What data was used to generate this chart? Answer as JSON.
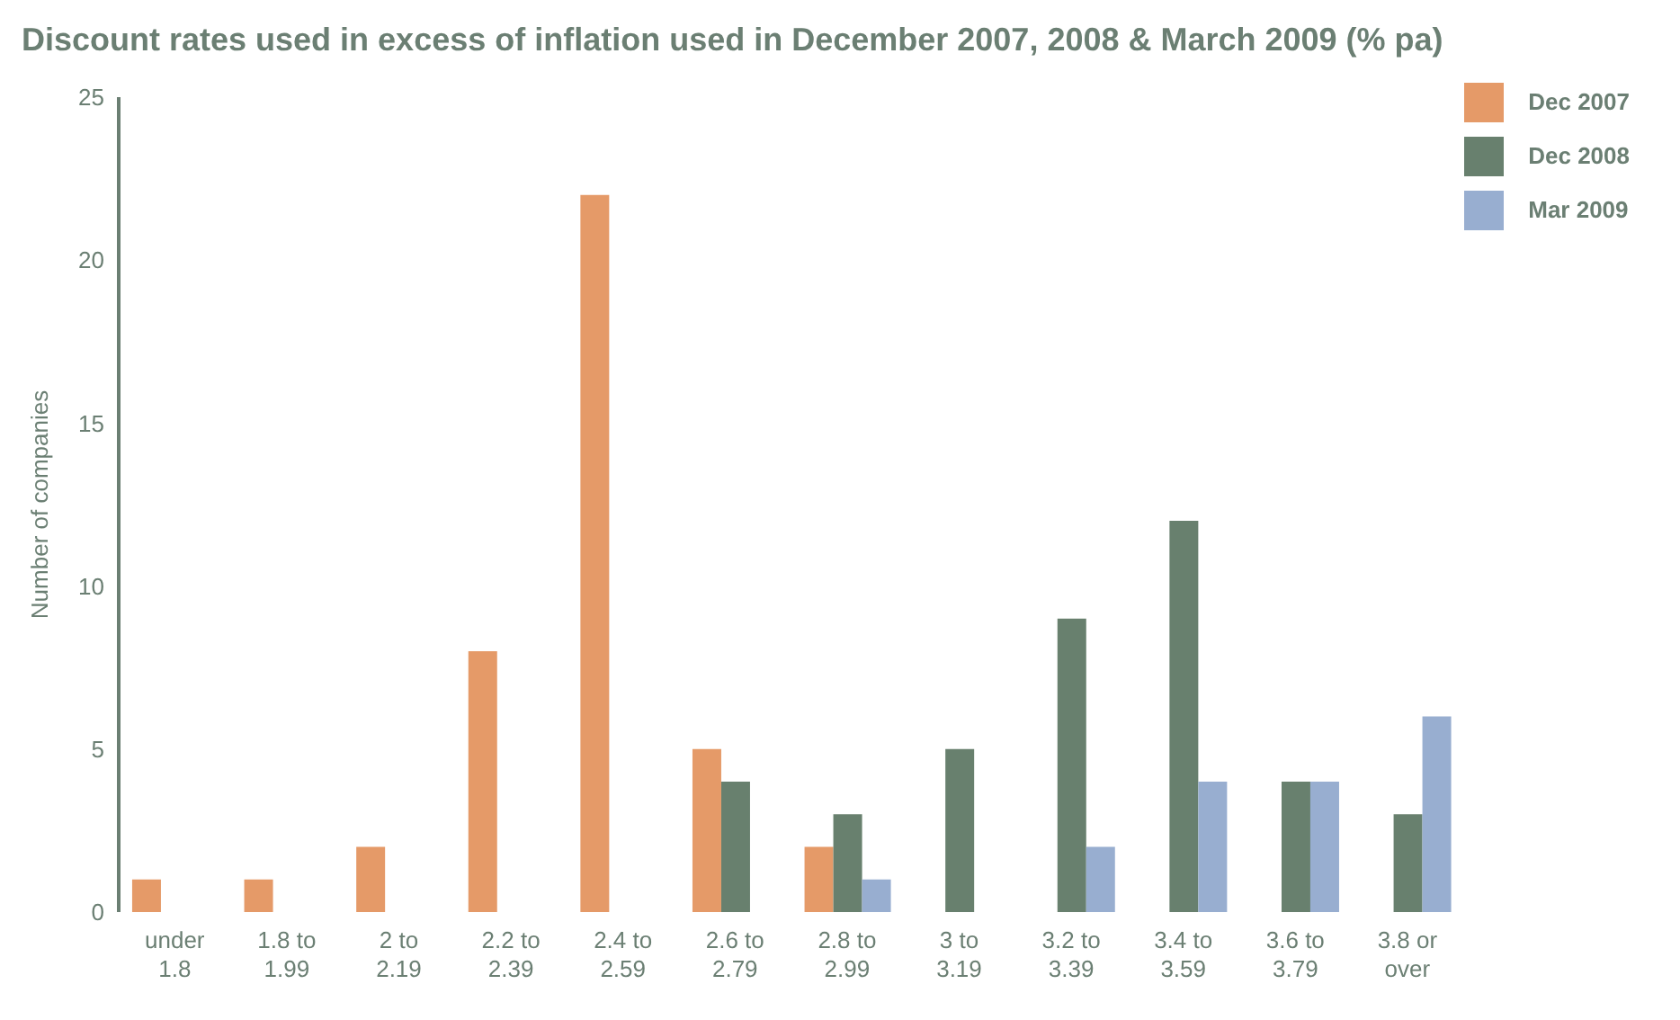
{
  "chart_data": {
    "type": "bar",
    "title": "Discount rates used in excess of inflation used in December 2007, 2008 & March 2009 (% pa)",
    "ylabel": "Number of companies",
    "categories": [
      "under 1.8",
      "1.8 to 1.99",
      "2 to 2.19",
      "2.2 to 2.39",
      "2.4 to 2.59",
      "2.6 to 2.79",
      "2.8 to 2.99",
      "3 to 3.19",
      "3.2 to 3.39",
      "3.4 to 3.59",
      "3.6 to 3.79",
      "3.8 or over"
    ],
    "series": [
      {
        "name": "Dec 2007",
        "color": "#e59a68",
        "values": [
          1,
          1,
          2,
          8,
          22,
          5,
          2,
          null,
          null,
          null,
          null,
          null
        ]
      },
      {
        "name": "Dec 2008",
        "color": "#68806e",
        "values": [
          null,
          null,
          null,
          null,
          null,
          4,
          3,
          5,
          9,
          12,
          4,
          3
        ]
      },
      {
        "name": "Mar 2009",
        "color": "#98aed0",
        "values": [
          null,
          null,
          null,
          null,
          null,
          null,
          1,
          null,
          2,
          4,
          4,
          6
        ]
      }
    ],
    "ylim": [
      0,
      25
    ],
    "yticks": [
      0,
      5,
      10,
      15,
      20,
      25
    ],
    "grid": false,
    "legend": "top right"
  }
}
